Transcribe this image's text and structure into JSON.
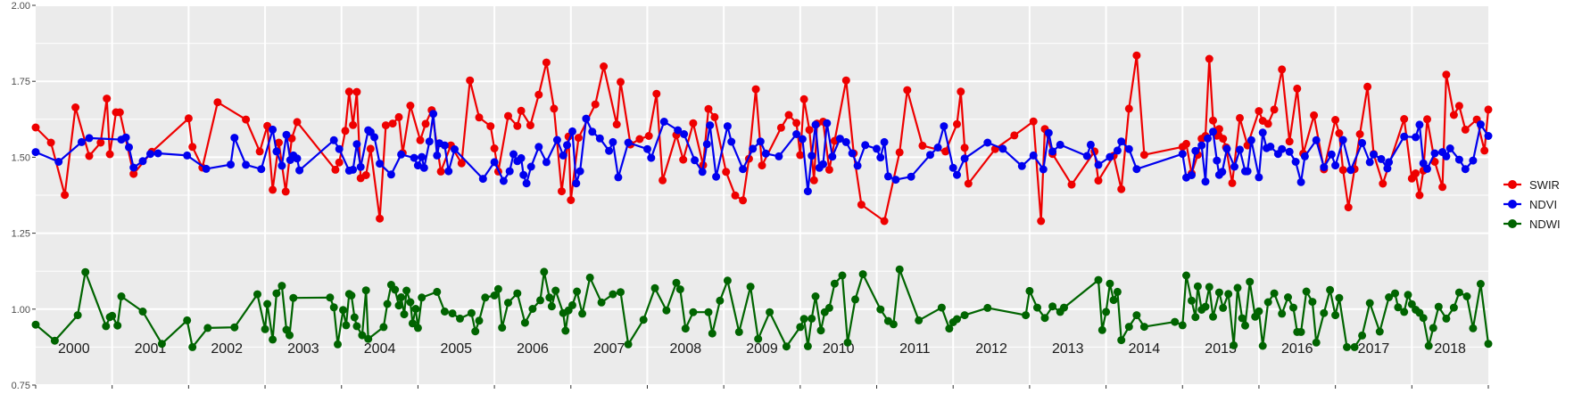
{
  "chart_data": {
    "type": "line",
    "title": "",
    "xlabel": "",
    "ylabel": "",
    "ylim": [
      0.75,
      2.0
    ],
    "xlim": [
      2000.0,
      2019.0
    ],
    "y_ticks": [
      "0.75",
      "1.00",
      "1.25",
      "1.50",
      "1.75",
      "2.00"
    ],
    "y_tick_values": [
      0.75,
      1.0,
      1.25,
      1.5,
      1.75,
      2.0
    ],
    "year_labels": [
      "2000",
      "2001",
      "2002",
      "2003",
      "2004",
      "2005",
      "2006",
      "2007",
      "2008",
      "2009",
      "2010",
      "2011",
      "2012",
      "2013",
      "2014",
      "2015",
      "2016",
      "2017",
      "2018"
    ],
    "legend_position": "right",
    "grid": true,
    "panel_background": "#ebebeb",
    "series": [
      {
        "name": "SWIR",
        "color": "#ee0000",
        "x": [
          2000.0,
          2000.2,
          2000.38,
          2000.52,
          2000.7,
          2000.85,
          2000.93,
          2000.97,
          2001.05,
          2001.1,
          2001.28,
          2001.52,
          2002.0,
          2002.05,
          2002.18,
          2002.38,
          2002.75,
          2002.93,
          2003.03,
          2003.1,
          2003.18,
          2003.27,
          2003.35,
          2003.42,
          2003.92,
          2003.97,
          2004.05,
          2004.1,
          2004.15,
          2004.2,
          2004.25,
          2004.32,
          2004.38,
          2004.5,
          2004.58,
          2004.67,
          2004.75,
          2004.8,
          2004.9,
          2005.03,
          2005.1,
          2005.18,
          2005.3,
          2005.43,
          2005.57,
          2005.68,
          2005.8,
          2005.95,
          2006.0,
          2006.05,
          2006.18,
          2006.3,
          2006.35,
          2006.47,
          2006.58,
          2006.68,
          2006.78,
          2006.88,
          2006.97,
          2007.0,
          2007.1,
          2007.32,
          2007.43,
          2007.6,
          2007.65,
          2007.78,
          2007.9,
          2008.02,
          2008.12,
          2008.2,
          2008.38,
          2008.47,
          2008.6,
          2008.73,
          2008.8,
          2008.88,
          2009.03,
          2009.15,
          2009.25,
          2009.33,
          2009.42,
          2009.5,
          2009.75,
          2009.85,
          2009.95,
          2010.0,
          2010.05,
          2010.12,
          2010.18,
          2010.22,
          2010.3,
          2010.38,
          2010.45,
          2010.6,
          2010.7,
          2010.8,
          2011.1,
          2011.3,
          2011.4,
          2011.6,
          2011.9,
          2012.05,
          2012.1,
          2012.15,
          2012.2,
          2012.55,
          2012.8,
          2013.05,
          2013.15,
          2013.2,
          2013.3,
          2013.55,
          2013.85,
          2013.9,
          2014.1,
          2014.2,
          2014.3,
          2014.4,
          2014.5,
          2015.0,
          2015.05,
          2015.12,
          2015.2,
          2015.25,
          2015.3,
          2015.35,
          2015.4,
          2015.45,
          2015.48,
          2015.53,
          2015.57,
          2015.65,
          2015.75,
          2015.85,
          2016.0,
          2016.05,
          2016.12,
          2016.2,
          2016.3,
          2016.4,
          2016.5,
          2016.58,
          2016.72,
          2016.85,
          2017.0,
          2017.05,
          2017.1,
          2017.17,
          2017.25,
          2017.32,
          2017.42,
          2017.5,
          2017.62,
          2017.9,
          2018.0,
          2018.05,
          2018.1,
          2018.15,
          2018.2,
          2018.3,
          2018.4,
          2018.45,
          2018.55,
          2018.62,
          2018.7,
          2018.85,
          2018.95,
          2019.0
        ]
      },
      {
        "name": "NDVI",
        "color": "#0000ee",
        "x": [
          2000.0,
          2000.3,
          2000.6,
          2000.7,
          2001.12,
          2001.18,
          2001.22,
          2001.28,
          2001.4,
          2001.5,
          2001.6,
          2001.98,
          2002.23,
          2002.55,
          2002.6,
          2002.75,
          2002.95,
          2003.1,
          2003.15,
          2003.22,
          2003.28,
          2003.33,
          2003.37,
          2003.42,
          2003.45,
          2003.9,
          2003.97,
          2004.1,
          2004.15,
          2004.2,
          2004.25,
          2004.35,
          2004.38,
          2004.43,
          2004.5,
          2004.65,
          2004.78,
          2004.95,
          2005.0,
          2005.05,
          2005.08,
          2005.15,
          2005.2,
          2005.25,
          2005.28,
          2005.35,
          2005.4,
          2005.48,
          2005.85,
          2006.0,
          2006.12,
          2006.2,
          2006.25,
          2006.3,
          2006.35,
          2006.38,
          2006.42,
          2006.48,
          2006.58,
          2006.68,
          2006.82,
          2006.9,
          2006.95,
          2007.02,
          2007.07,
          2007.12,
          2007.2,
          2007.28,
          2007.38,
          2007.5,
          2007.55,
          2007.62,
          2007.75,
          2008.0,
          2008.05,
          2008.22,
          2008.4,
          2008.48,
          2008.62,
          2008.72,
          2008.78,
          2008.82,
          2008.9,
          2009.05,
          2009.1,
          2009.25,
          2009.38,
          2009.48,
          2009.55,
          2009.72,
          2009.95,
          2010.03,
          2010.1,
          2010.15,
          2010.2,
          2010.25,
          2010.3,
          2010.35,
          2010.42,
          2010.52,
          2010.6,
          2010.68,
          2010.75,
          2010.85,
          2011.0,
          2011.05,
          2011.1,
          2011.15,
          2011.25,
          2011.45,
          2011.7,
          2011.8,
          2011.88,
          2012.0,
          2012.05,
          2012.15,
          2012.45,
          2012.65,
          2012.9,
          2013.05,
          2013.18,
          2013.25,
          2013.3,
          2013.4,
          2013.75,
          2013.8,
          2013.9,
          2014.05,
          2014.15,
          2014.2,
          2014.3,
          2014.4,
          2015.0,
          2015.05,
          2015.12,
          2015.17,
          2015.25,
          2015.3,
          2015.33,
          2015.4,
          2015.45,
          2015.48,
          2015.52,
          2015.58,
          2015.68,
          2015.75,
          2015.82,
          2015.85,
          2015.9,
          2016.0,
          2016.05,
          2016.1,
          2016.15,
          2016.25,
          2016.3,
          2016.4,
          2016.48,
          2016.55,
          2016.6,
          2016.75,
          2016.85,
          2016.95,
          2017.0,
          2017.1,
          2017.2,
          2017.35,
          2017.45,
          2017.5,
          2017.6,
          2017.68,
          2017.7,
          2017.9,
          2018.05,
          2018.1,
          2018.15,
          2018.2,
          2018.3,
          2018.4,
          2018.45,
          2018.5,
          2018.62,
          2018.7,
          2018.8,
          2018.9,
          2019.0
        ]
      },
      {
        "name": "NDWI",
        "color": "#006400",
        "x": [
          2000.0,
          2000.25,
          2000.55,
          2000.65,
          2000.92,
          2000.97,
          2001.0,
          2001.07,
          2001.12,
          2001.4,
          2001.65,
          2001.98,
          2002.05,
          2002.25,
          2002.6,
          2002.9,
          2003.0,
          2003.03,
          2003.1,
          2003.15,
          2003.22,
          2003.28,
          2003.32,
          2003.37,
          2003.85,
          2003.9,
          2003.95,
          2004.02,
          2004.06,
          2004.1,
          2004.13,
          2004.17,
          2004.2,
          2004.27,
          2004.32,
          2004.35,
          2004.55,
          2004.6,
          2004.65,
          2004.7,
          2004.75,
          2004.78,
          2004.82,
          2004.85,
          2004.9,
          2004.93,
          2004.97,
          2005.0,
          2005.05,
          2005.25,
          2005.35,
          2005.45,
          2005.55,
          2005.7,
          2005.75,
          2005.8,
          2005.88,
          2006.0,
          2006.05,
          2006.1,
          2006.18,
          2006.3,
          2006.4,
          2006.5,
          2006.6,
          2006.65,
          2006.72,
          2006.75,
          2006.8,
          2006.9,
          2006.93,
          2006.97,
          2007.02,
          2007.08,
          2007.15,
          2007.25,
          2007.4,
          2007.55,
          2007.65,
          2007.75,
          2007.95,
          2008.1,
          2008.25,
          2008.38,
          2008.43,
          2008.5,
          2008.6,
          2008.8,
          2008.85,
          2008.95,
          2009.05,
          2009.2,
          2009.35,
          2009.45,
          2009.6,
          2009.82,
          2010.0,
          2010.05,
          2010.1,
          2010.15,
          2010.2,
          2010.27,
          2010.32,
          2010.38,
          2010.45,
          2010.55,
          2010.62,
          2010.72,
          2010.82,
          2011.05,
          2011.15,
          2011.22,
          2011.3,
          2011.55,
          2011.85,
          2011.95,
          2012.0,
          2012.05,
          2012.15,
          2012.45,
          2012.95,
          2013.0,
          2013.1,
          2013.2,
          2013.3,
          2013.4,
          2013.45,
          2013.9,
          2013.95,
          2014.0,
          2014.05,
          2014.1,
          2014.15,
          2014.2,
          2014.3,
          2014.4,
          2014.5,
          2014.9,
          2015.0,
          2015.05,
          2015.12,
          2015.17,
          2015.2,
          2015.25,
          2015.3,
          2015.35,
          2015.4,
          2015.48,
          2015.53,
          2015.6,
          2015.67,
          2015.72,
          2015.78,
          2015.82,
          2015.88,
          2015.95,
          2016.0,
          2016.05,
          2016.12,
          2016.2,
          2016.3,
          2016.38,
          2016.45,
          2016.5,
          2016.55,
          2016.62,
          2016.7,
          2016.75,
          2016.85,
          2016.93,
          2017.0,
          2017.05,
          2017.15,
          2017.25,
          2017.35,
          2017.45,
          2017.58,
          2017.7,
          2017.78,
          2017.82,
          2017.9,
          2017.95,
          2018.0,
          2018.05,
          2018.1,
          2018.15,
          2018.22,
          2018.28,
          2018.35,
          2018.45,
          2018.55,
          2018.62,
          2018.72,
          2018.8,
          2018.9,
          2019.0
        ]
      }
    ]
  }
}
